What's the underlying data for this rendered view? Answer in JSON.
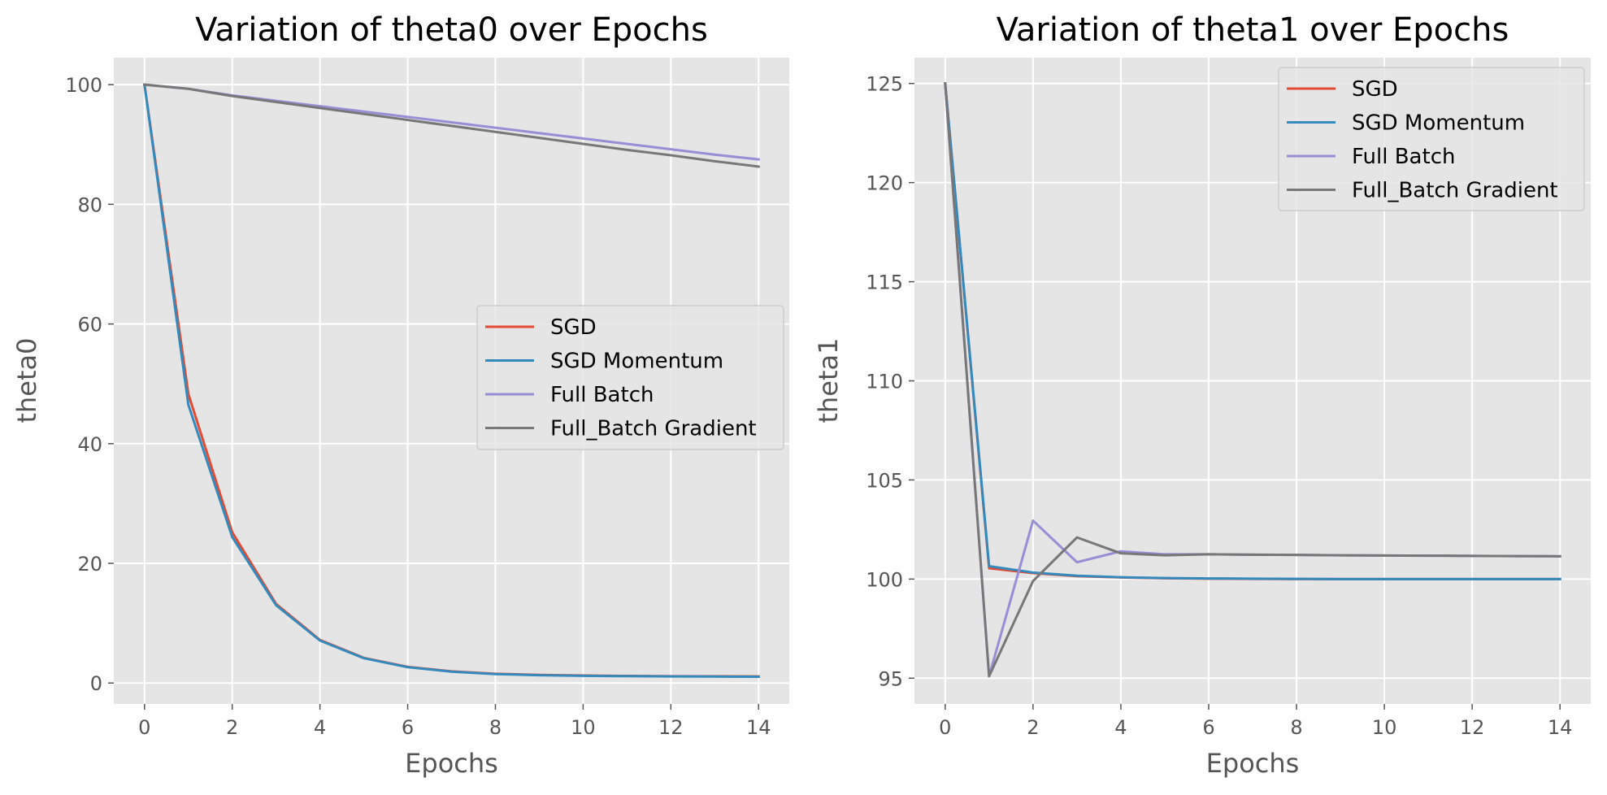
{
  "chart_data": [
    {
      "type": "line",
      "title": "Variation of theta0 over Epochs",
      "xlabel": "Epochs",
      "ylabel": "theta0",
      "xlim": [
        -0.7,
        14.7
      ],
      "ylim": [
        -3.5,
        104.5
      ],
      "xticks": [
        0,
        2,
        4,
        6,
        8,
        10,
        12,
        14
      ],
      "yticks": [
        0,
        20,
        40,
        60,
        80,
        100
      ],
      "grid": true,
      "legend_position": "center-right",
      "x": [
        0,
        1,
        2,
        3,
        4,
        5,
        6,
        7,
        8,
        9,
        10,
        11,
        12,
        13,
        14
      ],
      "series": [
        {
          "name": "SGD",
          "color": "#E24A33",
          "values": [
            100,
            48.3,
            25.2,
            13.2,
            7.2,
            4.2,
            2.7,
            1.95,
            1.55,
            1.35,
            1.25,
            1.18,
            1.14,
            1.12,
            1.1
          ]
        },
        {
          "name": "SGD Momentum",
          "color": "#348ABD",
          "values": [
            100,
            46.5,
            24.4,
            13.0,
            7.1,
            4.15,
            2.65,
            1.9,
            1.5,
            1.3,
            1.2,
            1.15,
            1.1,
            1.08,
            1.05
          ]
        },
        {
          "name": "Full Batch",
          "color": "#988ED5",
          "values": [
            100,
            99.3,
            98.2,
            97.3,
            96.4,
            95.5,
            94.6,
            93.7,
            92.8,
            91.9,
            91.0,
            90.1,
            89.2,
            88.3,
            87.5
          ]
        },
        {
          "name": "Full_Batch Gradient",
          "color": "#777777",
          "values": [
            100,
            99.3,
            98.1,
            97.1,
            96.1,
            95.1,
            94.1,
            93.1,
            92.1,
            91.1,
            90.1,
            89.1,
            88.2,
            87.2,
            86.3
          ]
        }
      ]
    },
    {
      "type": "line",
      "title": "Variation of theta1 over Epochs",
      "xlabel": "Epochs",
      "ylabel": "theta1",
      "xlim": [
        -0.7,
        14.7
      ],
      "ylim": [
        93.7,
        126.3
      ],
      "xticks": [
        0,
        2,
        4,
        6,
        8,
        10,
        12,
        14
      ],
      "yticks": [
        95,
        100,
        105,
        110,
        115,
        120,
        125
      ],
      "grid": true,
      "legend_position": "top-right",
      "x": [
        0,
        1,
        2,
        3,
        4,
        5,
        6,
        7,
        8,
        9,
        10,
        11,
        12,
        13,
        14
      ],
      "series": [
        {
          "name": "SGD",
          "color": "#E24A33",
          "values": [
            125,
            100.55,
            100.3,
            100.15,
            100.08,
            100.04,
            100.02,
            100.01,
            100.0,
            100.0,
            100.0,
            100.0,
            100.0,
            100.0,
            100.0
          ]
        },
        {
          "name": "SGD Momentum",
          "color": "#348ABD",
          "values": [
            125,
            100.65,
            100.33,
            100.17,
            100.09,
            100.05,
            100.03,
            100.02,
            100.01,
            100.0,
            100.0,
            100.0,
            100.0,
            100.0,
            100.0
          ]
        },
        {
          "name": "Full Batch",
          "color": "#988ED5",
          "values": [
            125,
            95.1,
            102.95,
            100.85,
            101.4,
            101.25,
            101.25,
            101.23,
            101.22,
            101.2,
            101.19,
            101.18,
            101.17,
            101.16,
            101.15
          ]
        },
        {
          "name": "Full_Batch Gradient",
          "color": "#777777",
          "values": [
            125,
            95.1,
            99.9,
            102.1,
            101.3,
            101.2,
            101.25,
            101.23,
            101.22,
            101.2,
            101.19,
            101.18,
            101.17,
            101.16,
            101.15
          ]
        }
      ]
    }
  ]
}
